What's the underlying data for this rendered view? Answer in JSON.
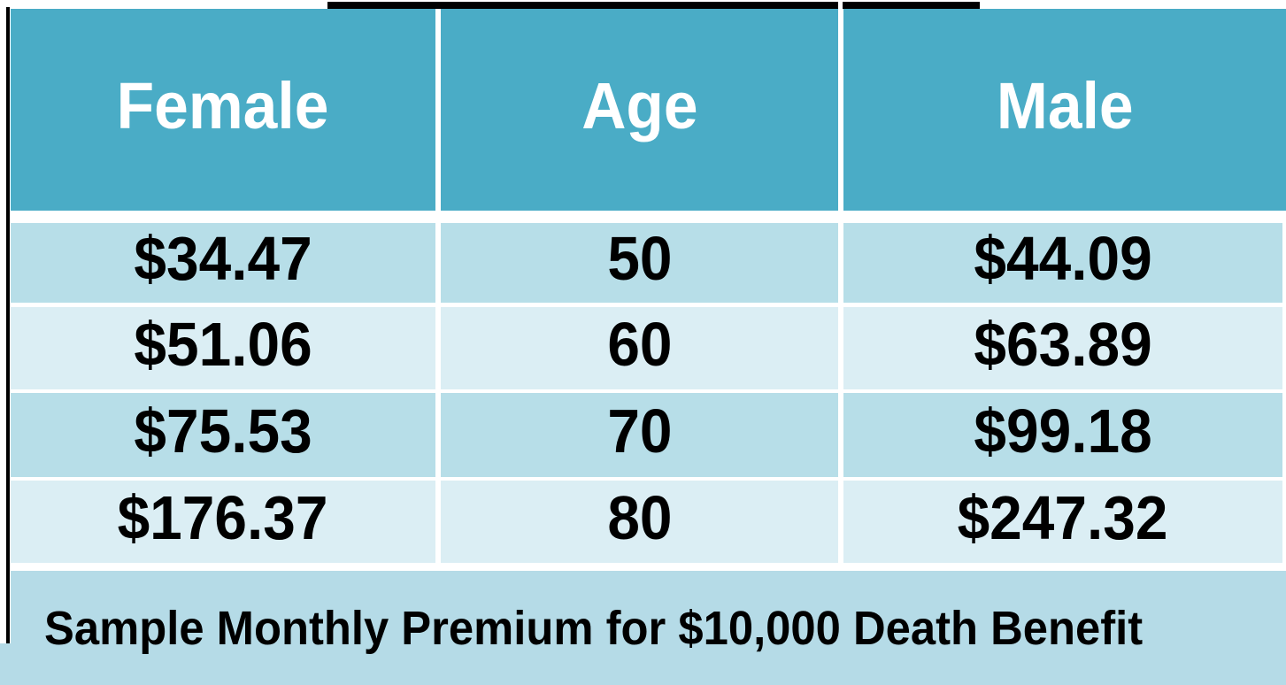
{
  "colors": {
    "header_bg": "#4aacc6",
    "header_text": "#ffffff",
    "band1_bg": "#b7dee8",
    "band2_bg": "#dbeef4",
    "footer_bg": "#b5dbe7",
    "body_text": "#000000",
    "border": "#000000"
  },
  "chart_data": {
    "type": "table",
    "columns": [
      "Female",
      "Age",
      "Male"
    ],
    "rows": [
      [
        "$34.47",
        "50",
        "$44.09"
      ],
      [
        "$51.06",
        "60",
        "$63.89"
      ],
      [
        "$75.53",
        "70",
        "$99.18"
      ],
      [
        "$176.37",
        "80",
        "$247.32"
      ]
    ],
    "caption": "Sample Monthly Premium for $10,000 Death Benefit",
    "layout": "banded-rows, teal header, caption row at bottom"
  }
}
